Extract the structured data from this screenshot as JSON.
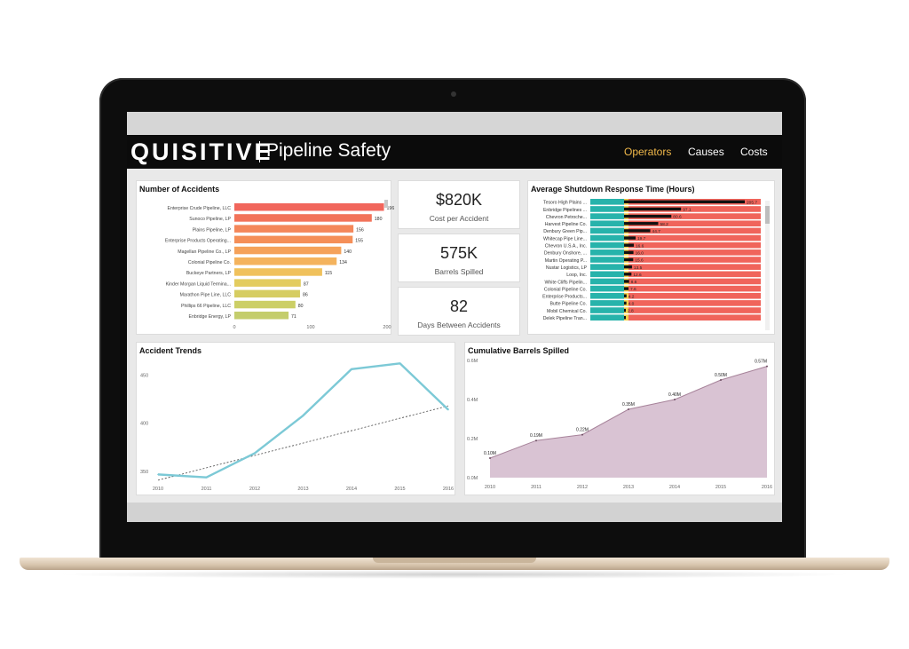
{
  "header": {
    "logo": "QUISITIVE",
    "title": "Pipeline Safety",
    "nav": [
      {
        "label": "Operators",
        "active": true
      },
      {
        "label": "Causes",
        "active": false
      },
      {
        "label": "Costs",
        "active": false
      }
    ]
  },
  "kpis": [
    {
      "value": "$820K",
      "label": "Cost per Accident"
    },
    {
      "value": "575K",
      "label": "Barrels Spilled"
    },
    {
      "value": "82",
      "label": "Days Between Accidents"
    }
  ],
  "colors": {
    "accent": "#f0b84a",
    "line": "#7cc9d6",
    "area": "#d9c3d3",
    "area_line": "#a7839a"
  },
  "chart_data": [
    {
      "type": "bar",
      "title": "Number of Accidents",
      "categories": [
        "Enterprise Crude Pipeline, LLC",
        "Sunoco Pipeline, LP",
        "Plains Pipeline, LP",
        "Enterprise Products Operating...",
        "Magellan Pipeline Co., LP",
        "Colonial Pipeline Co.",
        "Buckeye Partners, LP",
        "Kinder Morgan Liquid Termina...",
        "Marathon Pipe Line, LLC",
        "Phillips 66 Pipeline, LLC",
        "Enbridge Energy, LP"
      ],
      "values": [
        196,
        180,
        156,
        155,
        140,
        134,
        115,
        87,
        86,
        80,
        71
      ],
      "value_labels": [
        "196",
        "180",
        "156",
        "155",
        "140",
        "134",
        "115",
        "87",
        "86",
        "80",
        "71"
      ],
      "colors": [
        "#f1665c",
        "#f2735a",
        "#f4875a",
        "#f58f58",
        "#f5a25a",
        "#f4b35d",
        "#f0c15c",
        "#e3cc5e",
        "#d6cd62",
        "#cccf66",
        "#c4cd6c"
      ],
      "xticks": [
        "0",
        "100",
        "200"
      ],
      "xlim": [
        0,
        200
      ]
    },
    {
      "type": "bar",
      "title": "Average Shutdown Response Time (Hours)",
      "categories": [
        "Tesoro High Plains ...",
        "Enbridge Pipelines ...",
        "Chevron Petroche...",
        "Harvest Pipeline Co.",
        "Denbury Green Pip...",
        "Whitecap Pipe Line...",
        "Chevron U.S.A., Inc.",
        "Denbury Onshore, ...",
        "Martin Operating P...",
        "Nustar Logistics, LP",
        "Loop, Inc.",
        "White Cliffs Pipelin...",
        "Colonial Pipeline Co.",
        "Enterprise Products...",
        "Butte Pipeline Co.",
        "Mobil Chemical Co.",
        "Delek Pipeline Tran..."
      ],
      "value_labels": [
        "205.7",
        "97.1",
        "80.6",
        "58.2",
        "44.7",
        "19.7",
        "16.6",
        "16.0",
        "15.6",
        "13.5",
        "12.6",
        "8.6",
        "7.6",
        "4.2",
        "4.0",
        "2.8",
        ""
      ],
      "values": [
        205.7,
        97.1,
        80.6,
        58.2,
        44.7,
        19.7,
        16.6,
        16.0,
        15.6,
        13.5,
        12.6,
        8.6,
        7.6,
        4.2,
        4.0,
        2.8,
        2.0
      ],
      "segment_colors": {
        "teal": "#27b3ab",
        "yellow": "#f4d04c",
        "red": "#f0645b",
        "value": "#111111"
      }
    },
    {
      "type": "line",
      "title": "Accident Trends",
      "x": [
        "2010",
        "2011",
        "2012",
        "2013",
        "2014",
        "2015",
        "2016"
      ],
      "values": [
        347,
        344,
        369,
        408,
        456,
        462,
        414
      ],
      "trendline": [
        341,
        418
      ],
      "ylim": [
        340,
        465
      ],
      "yticks": [
        "350",
        "400",
        "450"
      ],
      "ytick_values": [
        350,
        400,
        450
      ]
    },
    {
      "type": "area",
      "title": "Cumulative Barrels Spilled",
      "x": [
        "2010",
        "2011",
        "2012",
        "2013",
        "2014",
        "2015",
        "2016"
      ],
      "values": [
        0.1,
        0.19,
        0.22,
        0.35,
        0.4,
        0.5,
        0.57
      ],
      "value_labels": [
        "0.10M",
        "0.19M",
        "0.22M",
        "0.35M",
        "0.40M",
        "0.50M",
        "0.57M"
      ],
      "ylim": [
        0,
        0.6
      ],
      "yticks": [
        "0.0M",
        "0.2M",
        "0.4M",
        "0.6M"
      ],
      "ytick_values": [
        0,
        0.2,
        0.4,
        0.6
      ]
    }
  ]
}
